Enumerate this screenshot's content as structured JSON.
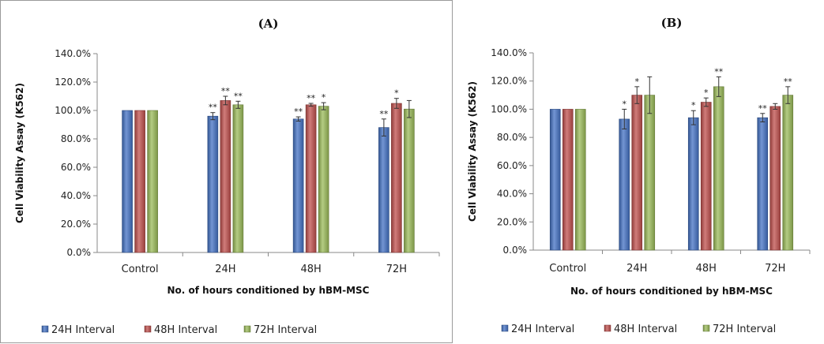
{
  "colors": {
    "series1": "#4472C4",
    "series2": "#C0504D",
    "series3": "#9BBB59"
  },
  "chart_data": [
    {
      "type": "bar",
      "title": "(A)",
      "xlabel": "No. of hours conditioned by hBM-MSC",
      "ylabel": "Cell Viability Assay (K562)",
      "ylim": [
        0,
        140
      ],
      "y_ticks": [
        "0.0%",
        "20.0%",
        "40.0%",
        "60.0%",
        "80.0%",
        "100.0%",
        "120.0%",
        "140.0%"
      ],
      "categories": [
        "Control",
        "24H",
        "48H",
        "72H"
      ],
      "legend_position": "bottom",
      "series": [
        {
          "name": "24H Interval",
          "values": [
            100,
            96,
            94,
            88
          ],
          "errors": [
            0,
            2.5,
            1.5,
            6
          ],
          "sig": [
            "",
            "**",
            "**",
            "**"
          ]
        },
        {
          "name": "48H Interval",
          "values": [
            100,
            107,
            104,
            105
          ],
          "errors": [
            0,
            3,
            1,
            3.5
          ],
          "sig": [
            "",
            "**",
            "**",
            "*"
          ]
        },
        {
          "name": "72H Interval",
          "values": [
            100,
            104,
            103,
            101
          ],
          "errors": [
            0,
            2.5,
            2.5,
            6
          ],
          "sig": [
            "",
            "**",
            "*",
            ""
          ]
        }
      ]
    },
    {
      "type": "bar",
      "title": "(B)",
      "xlabel": "No. of hours conditioned by hBM-MSC",
      "ylabel": "Cell Viability Assay (K562)",
      "ylim": [
        0,
        140
      ],
      "y_ticks": [
        "0.0%",
        "20.0%",
        "40.0%",
        "60.0%",
        "80.0%",
        "100.0%",
        "120.0%",
        "140.0%"
      ],
      "categories": [
        "Control",
        "24H",
        "48H",
        "72H"
      ],
      "legend_position": "bottom",
      "series": [
        {
          "name": "24H Interval",
          "values": [
            100,
            93,
            94,
            94
          ],
          "errors": [
            0,
            7,
            5,
            3
          ],
          "sig": [
            "",
            "*",
            "*",
            "**"
          ]
        },
        {
          "name": "48H Interval",
          "values": [
            100,
            110,
            105,
            102
          ],
          "errors": [
            0,
            6,
            3,
            2
          ],
          "sig": [
            "",
            "*",
            "*",
            ""
          ]
        },
        {
          "name": "72H Interval",
          "values": [
            100,
            110,
            116,
            110
          ],
          "errors": [
            0,
            13,
            7,
            6
          ],
          "sig": [
            "",
            "",
            "**",
            "**"
          ]
        }
      ]
    }
  ]
}
